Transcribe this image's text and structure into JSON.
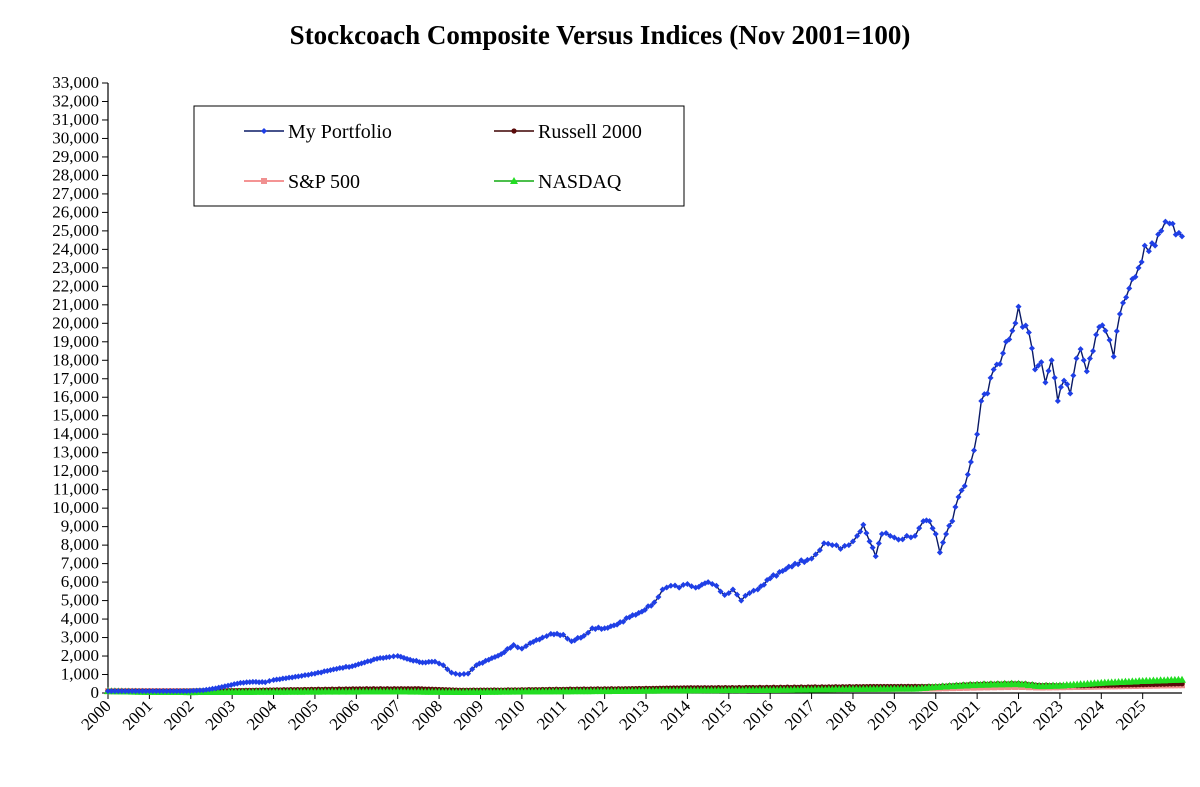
{
  "chart_data": {
    "type": "line",
    "title": "Stockcoach Composite Versus Indices (Nov 2001=100)",
    "xlabel": "",
    "ylabel": "",
    "x_range": [
      2000,
      2025.95
    ],
    "ylim": [
      0,
      33000
    ],
    "y_ticks": [
      0,
      1000,
      2000,
      3000,
      4000,
      5000,
      6000,
      7000,
      8000,
      9000,
      10000,
      11000,
      12000,
      13000,
      14000,
      15000,
      16000,
      17000,
      18000,
      19000,
      20000,
      21000,
      22000,
      23000,
      24000,
      25000,
      26000,
      27000,
      28000,
      29000,
      30000,
      31000,
      32000,
      33000
    ],
    "x_tick_labels": [
      "2000",
      "2001",
      "2002",
      "2003",
      "2004",
      "2005",
      "2006",
      "2007",
      "2008",
      "2009",
      "2010",
      "2011",
      "2012",
      "2013",
      "2014",
      "2015",
      "2016",
      "2017",
      "2018",
      "2019",
      "2020",
      "2021",
      "2022",
      "2023",
      "2024",
      "2025"
    ],
    "grid": false,
    "legend_placement": "top-left inside",
    "legend": [
      "My Portfolio",
      "Russell 2000",
      "S&P 500",
      "NASDAQ"
    ],
    "series": [
      {
        "name": "My Portfolio",
        "color": "#1f3fe6",
        "line_color": "#0a1a66",
        "marker": "diamond",
        "points": [
          [
            2000.0,
            100
          ],
          [
            2000.5,
            100
          ],
          [
            2001.0,
            100
          ],
          [
            2001.5,
            100
          ],
          [
            2001.9,
            100
          ],
          [
            2002.3,
            150
          ],
          [
            2002.6,
            250
          ],
          [
            2002.9,
            400
          ],
          [
            2003.2,
            550
          ],
          [
            2003.5,
            600
          ],
          [
            2003.8,
            580
          ],
          [
            2004.0,
            700
          ],
          [
            2004.3,
            800
          ],
          [
            2004.6,
            900
          ],
          [
            2005.0,
            1050
          ],
          [
            2005.3,
            1200
          ],
          [
            2005.6,
            1350
          ],
          [
            2005.9,
            1450
          ],
          [
            2006.2,
            1650
          ],
          [
            2006.5,
            1850
          ],
          [
            2006.8,
            1950
          ],
          [
            2007.0,
            2000
          ],
          [
            2007.3,
            1800
          ],
          [
            2007.6,
            1650
          ],
          [
            2007.9,
            1700
          ],
          [
            2008.1,
            1500
          ],
          [
            2008.3,
            1100
          ],
          [
            2008.5,
            1000
          ],
          [
            2008.7,
            1050
          ],
          [
            2008.9,
            1500
          ],
          [
            2009.2,
            1800
          ],
          [
            2009.5,
            2100
          ],
          [
            2009.8,
            2600
          ],
          [
            2010.0,
            2400
          ],
          [
            2010.2,
            2700
          ],
          [
            2010.5,
            3000
          ],
          [
            2010.7,
            3200
          ],
          [
            2011.0,
            3150
          ],
          [
            2011.2,
            2800
          ],
          [
            2011.5,
            3100
          ],
          [
            2011.7,
            3500
          ],
          [
            2012.0,
            3500
          ],
          [
            2012.3,
            3700
          ],
          [
            2012.6,
            4100
          ],
          [
            2012.9,
            4400
          ],
          [
            2013.2,
            4900
          ],
          [
            2013.4,
            5600
          ],
          [
            2013.6,
            5800
          ],
          [
            2013.8,
            5700
          ],
          [
            2014.0,
            5900
          ],
          [
            2014.2,
            5700
          ],
          [
            2014.5,
            6000
          ],
          [
            2014.7,
            5800
          ],
          [
            2014.9,
            5300
          ],
          [
            2015.1,
            5600
          ],
          [
            2015.3,
            5000
          ],
          [
            2015.5,
            5400
          ],
          [
            2015.7,
            5600
          ],
          [
            2016.0,
            6200
          ],
          [
            2016.3,
            6600
          ],
          [
            2016.6,
            7000
          ],
          [
            2016.9,
            7200
          ],
          [
            2017.1,
            7500
          ],
          [
            2017.3,
            8100
          ],
          [
            2017.5,
            8000
          ],
          [
            2017.7,
            7800
          ],
          [
            2017.9,
            8000
          ],
          [
            2018.1,
            8500
          ],
          [
            2018.25,
            9100
          ],
          [
            2018.4,
            8200
          ],
          [
            2018.55,
            7400
          ],
          [
            2018.7,
            8600
          ],
          [
            2018.9,
            8500
          ],
          [
            2019.1,
            8300
          ],
          [
            2019.3,
            8500
          ],
          [
            2019.5,
            8500
          ],
          [
            2019.7,
            9300
          ],
          [
            2019.85,
            9300
          ],
          [
            2020.0,
            8600
          ],
          [
            2020.1,
            7600
          ],
          [
            2020.25,
            8600
          ],
          [
            2020.4,
            9300
          ],
          [
            2020.55,
            10600
          ],
          [
            2020.7,
            11200
          ],
          [
            2020.85,
            12500
          ],
          [
            2021.0,
            14000
          ],
          [
            2021.1,
            15800
          ],
          [
            2021.25,
            16200
          ],
          [
            2021.4,
            17500
          ],
          [
            2021.55,
            17800
          ],
          [
            2021.7,
            19000
          ],
          [
            2021.85,
            19600
          ],
          [
            2022.0,
            20900
          ],
          [
            2022.1,
            19800
          ],
          [
            2022.25,
            19500
          ],
          [
            2022.4,
            17500
          ],
          [
            2022.55,
            17900
          ],
          [
            2022.65,
            16800
          ],
          [
            2022.8,
            18000
          ],
          [
            2022.95,
            15800
          ],
          [
            2023.1,
            16900
          ],
          [
            2023.25,
            16200
          ],
          [
            2023.4,
            18100
          ],
          [
            2023.5,
            18600
          ],
          [
            2023.65,
            17400
          ],
          [
            2023.8,
            18500
          ],
          [
            2023.95,
            19800
          ],
          [
            2024.1,
            19600
          ],
          [
            2024.2,
            19100
          ],
          [
            2024.3,
            18200
          ],
          [
            2024.45,
            20500
          ],
          [
            2024.6,
            21400
          ],
          [
            2024.75,
            22400
          ],
          [
            2024.9,
            23000
          ],
          [
            2025.05,
            24200
          ],
          [
            2025.15,
            23900
          ],
          [
            2025.3,
            24200
          ],
          [
            2025.45,
            25000
          ],
          [
            2025.55,
            25500
          ],
          [
            2025.65,
            25400
          ],
          [
            2025.8,
            24800
          ],
          [
            2025.95,
            24700
          ]
        ]
      },
      {
        "name": "Russell 2000",
        "color": "#5a0a0a",
        "line_color": "#3d0000",
        "marker": "circle",
        "points": [
          [
            2000.0,
            100
          ],
          [
            2002.0,
            100
          ],
          [
            2003.0,
            130
          ],
          [
            2004.5,
            180
          ],
          [
            2006.0,
            220
          ],
          [
            2007.5,
            230
          ],
          [
            2008.5,
            150
          ],
          [
            2009.5,
            160
          ],
          [
            2011.0,
            200
          ],
          [
            2012.5,
            230
          ],
          [
            2014.0,
            280
          ],
          [
            2015.5,
            290
          ],
          [
            2017.0,
            320
          ],
          [
            2018.5,
            350
          ],
          [
            2020.0,
            360
          ],
          [
            2021.0,
            480
          ],
          [
            2022.0,
            520
          ],
          [
            2022.5,
            420
          ],
          [
            2023.5,
            400
          ],
          [
            2024.5,
            430
          ],
          [
            2025.95,
            500
          ]
        ]
      },
      {
        "name": "S&P 500",
        "color": "#f09090",
        "line_color": "#f07070",
        "marker": "square",
        "points": [
          [
            2000.0,
            100
          ],
          [
            2002.0,
            100
          ],
          [
            2003.0,
            95
          ],
          [
            2005.0,
            120
          ],
          [
            2007.5,
            135
          ],
          [
            2008.5,
            80
          ],
          [
            2010.0,
            100
          ],
          [
            2012.0,
            120
          ],
          [
            2014.0,
            160
          ],
          [
            2016.0,
            180
          ],
          [
            2018.0,
            220
          ],
          [
            2020.0,
            250
          ],
          [
            2021.0,
            300
          ],
          [
            2022.0,
            340
          ],
          [
            2022.5,
            300
          ],
          [
            2023.5,
            330
          ],
          [
            2025.0,
            390
          ],
          [
            2025.95,
            420
          ]
        ]
      },
      {
        "name": "NASDAQ",
        "color": "#22dd22",
        "line_color": "#11aa11",
        "marker": "triangle",
        "points": [
          [
            2000.0,
            100
          ],
          [
            2001.0,
            60
          ],
          [
            2002.0,
            50
          ],
          [
            2003.0,
            60
          ],
          [
            2005.0,
            75
          ],
          [
            2007.0,
            85
          ],
          [
            2008.5,
            55
          ],
          [
            2010.0,
            80
          ],
          [
            2012.0,
            105
          ],
          [
            2014.0,
            145
          ],
          [
            2016.0,
            170
          ],
          [
            2018.0,
            220
          ],
          [
            2019.5,
            240
          ],
          [
            2020.0,
            330
          ],
          [
            2021.0,
            450
          ],
          [
            2022.0,
            500
          ],
          [
            2022.5,
            380
          ],
          [
            2023.0,
            400
          ],
          [
            2024.0,
            550
          ],
          [
            2025.0,
            650
          ],
          [
            2025.95,
            720
          ]
        ]
      }
    ]
  }
}
